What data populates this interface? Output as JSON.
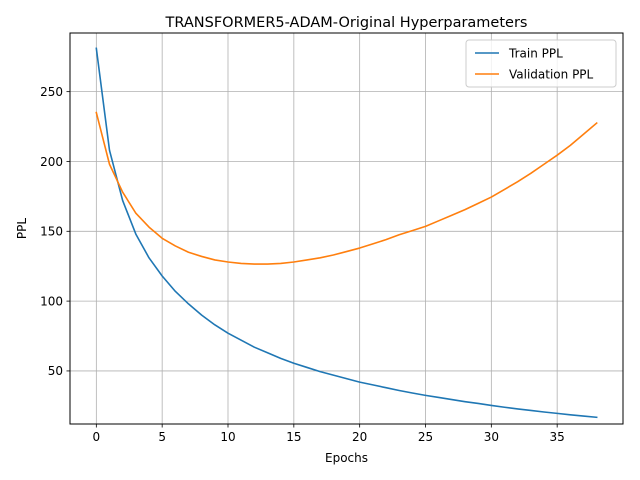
{
  "chart_data": {
    "type": "line",
    "title": "TRANSFORMER5-ADAM-Original Hyperparameters",
    "xlabel": "Epochs",
    "ylabel": "PPL",
    "xlim": [
      -2,
      40
    ],
    "ylim": [
      12,
      292
    ],
    "xticks": [
      0,
      5,
      10,
      15,
      20,
      25,
      30,
      35
    ],
    "yticks": [
      50,
      100,
      150,
      200,
      250
    ],
    "grid": true,
    "legend_position": "top-right",
    "x": [
      0,
      1,
      2,
      3,
      4,
      5,
      6,
      7,
      8,
      9,
      10,
      11,
      12,
      13,
      14,
      15,
      16,
      17,
      18,
      19,
      20,
      21,
      22,
      23,
      24,
      25,
      26,
      27,
      28,
      29,
      30,
      31,
      32,
      33,
      34,
      35,
      36,
      37,
      38
    ],
    "series": [
      {
        "name": "Train PPL",
        "color": "#1f77b4",
        "values": [
          281,
          208,
          172,
          148,
          131,
          118,
          107,
          98,
          90,
          83,
          77,
          72,
          67,
          63,
          59,
          55.5,
          52.5,
          49.5,
          47,
          44.5,
          42,
          40,
          38,
          36,
          34.2,
          32.5,
          31,
          29.5,
          28,
          26.7,
          25.3,
          24,
          22.8,
          21.7,
          20.6,
          19.6,
          18.6,
          17.7,
          16.8
        ]
      },
      {
        "name": "Validation PPL",
        "color": "#ff7f0e",
        "values": [
          235,
          198,
          178,
          163,
          153,
          145,
          139.5,
          135,
          132,
          129.5,
          128,
          127,
          126.5,
          126.5,
          127,
          128,
          129.5,
          131,
          133,
          135.5,
          138,
          141,
          144,
          147.5,
          150.5,
          153.5,
          157.5,
          161.5,
          165.5,
          170,
          174.5,
          180,
          185.5,
          191.5,
          198,
          204.5,
          211.5,
          219.5,
          227.5
        ]
      }
    ]
  }
}
